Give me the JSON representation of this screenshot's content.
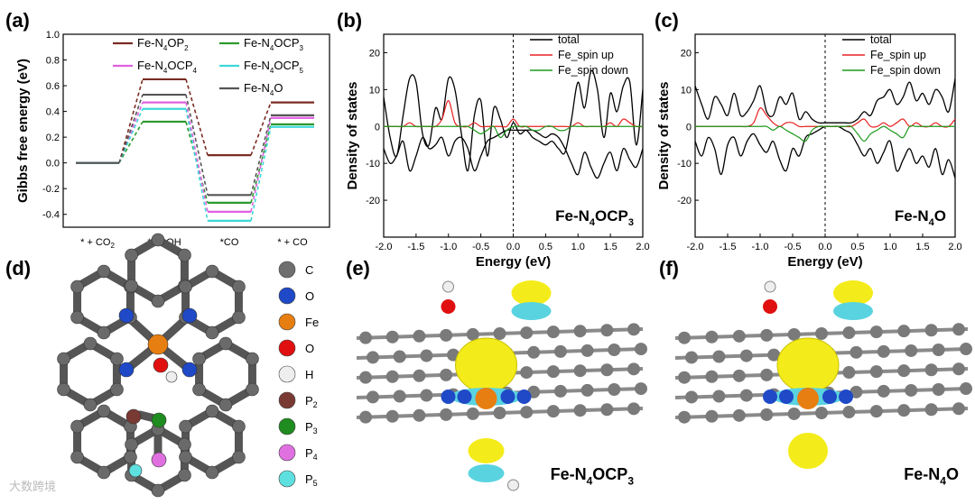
{
  "panels": {
    "a": "(a)",
    "b": "(b)",
    "c": "(c)",
    "d": "(d)",
    "e": "(e)",
    "f": "(f)"
  },
  "colors": {
    "P2": "#7a2b22",
    "P3": "#2e9a2e",
    "P4": "#e060e0",
    "P5": "#3fd8d8",
    "N4O": "#555555",
    "total": "#000000",
    "spin_up": "#e82020",
    "spin_down": "#1c9a1c"
  },
  "chart_data": [
    {
      "type": "line",
      "panel": "a",
      "ylabel": "Gibbs free energy (eV)",
      "ylim": [
        -0.5,
        1.0
      ],
      "yticks": [
        "-0.4",
        "-0.2",
        "0.0",
        "0.2",
        "0.4",
        "0.6",
        "0.8",
        "1.0"
      ],
      "categories": [
        "* + CO2",
        "*COOH",
        "*CO",
        "* + CO"
      ],
      "category_labels": [
        {
          "main": "* + CO",
          "sub": "2"
        },
        {
          "main": "*COOH",
          "sub": ""
        },
        {
          "main": "*CO",
          "sub": ""
        },
        {
          "main": "* + CO",
          "sub": ""
        }
      ],
      "series": [
        {
          "key": "P2",
          "name": {
            "main": "Fe-N",
            "s1": "4",
            "mid": "OP",
            "s2": "2"
          },
          "values": [
            0.0,
            0.65,
            0.06,
            0.47
          ]
        },
        {
          "key": "P3",
          "name": {
            "main": "Fe-N",
            "s1": "4",
            "mid": "OCP",
            "s2": "3"
          },
          "values": [
            0.0,
            0.32,
            -0.31,
            0.3
          ]
        },
        {
          "key": "P4",
          "name": {
            "main": "Fe-N",
            "s1": "4",
            "mid": "OCP",
            "s2": "4"
          },
          "values": [
            0.0,
            0.47,
            -0.38,
            0.35
          ]
        },
        {
          "key": "P5",
          "name": {
            "main": "Fe-N",
            "s1": "4",
            "mid": "OCP",
            "s2": "5"
          },
          "values": [
            0.0,
            0.42,
            -0.45,
            0.28
          ]
        },
        {
          "key": "N4O",
          "name": {
            "main": "Fe-N",
            "s1": "4",
            "mid": "O",
            "s2": ""
          },
          "values": [
            0.0,
            0.53,
            -0.25,
            0.37
          ]
        }
      ]
    },
    {
      "type": "line",
      "panel": "b",
      "title": {
        "main": "Fe-N",
        "s1": "4",
        "mid": "OCP",
        "s2": "3"
      },
      "xlabel": "Energy (eV)",
      "ylabel": "Density of states",
      "xlim": [
        -2.0,
        2.0
      ],
      "ylim": [
        -30,
        25
      ],
      "xticks": [
        "-2.0",
        "-1.5",
        "-1.0",
        "-0.5",
        "0.0",
        "0.5",
        "1.0",
        "1.5",
        "2.0"
      ],
      "yticks": [
        "-20",
        "-10",
        "0",
        "10",
        "20"
      ],
      "x": [
        -2.0,
        -1.9,
        -1.8,
        -1.7,
        -1.6,
        -1.5,
        -1.4,
        -1.3,
        -1.2,
        -1.1,
        -1.0,
        -0.9,
        -0.8,
        -0.7,
        -0.6,
        -0.5,
        -0.4,
        -0.3,
        -0.2,
        -0.1,
        0.0,
        0.1,
        0.2,
        0.3,
        0.4,
        0.5,
        0.6,
        0.7,
        0.8,
        0.9,
        1.0,
        1.1,
        1.2,
        1.3,
        1.4,
        1.5,
        1.6,
        1.7,
        1.8,
        1.9,
        2.0
      ],
      "series": [
        {
          "name": "total",
          "key": "total",
          "values": [
            8,
            -3,
            -8,
            3,
            13,
            12,
            -2,
            -5,
            5,
            2,
            13,
            10,
            -2,
            -12,
            3,
            7,
            -8,
            5,
            2,
            -3,
            1,
            -2,
            -1,
            -3,
            -4,
            -5,
            -4,
            -6,
            -7,
            2,
            12,
            5,
            15,
            10,
            -3,
            9,
            4,
            11,
            12,
            -5,
            10
          ]
        },
        {
          "name": "total_down",
          "key": "total",
          "values": [
            -6,
            -10,
            -8,
            -4,
            -12,
            -8,
            -3,
            -6,
            -5,
            -3,
            -8,
            -4,
            -3,
            -6,
            -12,
            -8,
            -4,
            -3,
            -2,
            -1,
            -1,
            -1,
            -1,
            -1,
            -2,
            -3,
            -2,
            -3,
            -6,
            -10,
            -13,
            -7,
            -11,
            -14,
            -10,
            -7,
            -12,
            -6,
            -9,
            -11,
            -6
          ]
        },
        {
          "name": "Fe_spin up",
          "key": "spin_up",
          "values": [
            0,
            0,
            0,
            0,
            1,
            0,
            0,
            0,
            0,
            2,
            7,
            1,
            0,
            0,
            1,
            0,
            0,
            0,
            0,
            0,
            2,
            0,
            0,
            0,
            0,
            0,
            0,
            0,
            0,
            0,
            1,
            0,
            0,
            0,
            0,
            1,
            0,
            2,
            1,
            0,
            0
          ]
        },
        {
          "name": "Fe_spin down",
          "key": "spin_down",
          "values": [
            0,
            0,
            0,
            0,
            0,
            0,
            0,
            0,
            0,
            0,
            0,
            0,
            0,
            0,
            -1,
            -2,
            -1,
            0,
            -3,
            -1,
            0,
            0,
            0,
            -1,
            -1,
            0,
            0,
            -1,
            -1,
            0,
            0,
            0,
            0,
            0,
            0,
            0,
            0,
            0,
            0,
            0,
            0
          ]
        }
      ],
      "legend": [
        "total",
        "Fe_spin up",
        "Fe_spin down"
      ]
    },
    {
      "type": "line",
      "panel": "c",
      "title": {
        "main": "Fe-N",
        "s1": "4",
        "mid": "O",
        "s2": ""
      },
      "xlabel": "Energy (eV)",
      "ylabel": "Density of states",
      "xlim": [
        -2.0,
        2.0
      ],
      "ylim": [
        -30,
        25
      ],
      "xticks": [
        "-2.0",
        "-1.5",
        "-1.0",
        "-0.5",
        "0.0",
        "0.5",
        "1.0",
        "1.5",
        "2.0"
      ],
      "yticks": [
        "-20",
        "-10",
        "0",
        "10",
        "20"
      ],
      "x": [
        -2.0,
        -1.9,
        -1.8,
        -1.7,
        -1.6,
        -1.5,
        -1.4,
        -1.3,
        -1.2,
        -1.1,
        -1.0,
        -0.9,
        -0.8,
        -0.7,
        -0.6,
        -0.5,
        -0.4,
        -0.3,
        -0.2,
        -0.1,
        0.0,
        0.1,
        0.2,
        0.3,
        0.4,
        0.5,
        0.6,
        0.7,
        0.8,
        0.9,
        1.0,
        1.1,
        1.2,
        1.3,
        1.4,
        1.5,
        1.6,
        1.7,
        1.8,
        1.9,
        2.0
      ],
      "series": [
        {
          "name": "total",
          "key": "total",
          "values": [
            11,
            6,
            2,
            8,
            6,
            3,
            9,
            3,
            4,
            7,
            11,
            4,
            3,
            8,
            6,
            9,
            2,
            4,
            2,
            1,
            1,
            1,
            1,
            1,
            1,
            2,
            4,
            3,
            7,
            8,
            10,
            6,
            8,
            12,
            7,
            9,
            6,
            10,
            8,
            4,
            13
          ]
        },
        {
          "name": "total_down",
          "key": "total",
          "values": [
            -4,
            -8,
            -3,
            -6,
            -13,
            -5,
            -3,
            -8,
            -4,
            -2,
            -5,
            -7,
            -4,
            -9,
            -12,
            -6,
            -8,
            -3,
            -2,
            -1,
            0,
            0,
            0,
            -1,
            -2,
            -5,
            -8,
            -6,
            -10,
            -7,
            -4,
            -12,
            -9,
            -6,
            -10,
            -8,
            -11,
            -6,
            -13,
            -9,
            -14
          ]
        },
        {
          "name": "Fe_spin up",
          "key": "spin_up",
          "values": [
            0,
            0,
            0,
            0,
            0,
            0,
            0,
            0,
            0,
            1,
            5,
            3,
            1,
            0,
            1,
            1,
            0,
            0,
            0,
            0,
            0,
            0,
            0,
            0,
            0,
            1,
            2,
            0,
            0,
            1,
            0,
            1,
            2,
            0,
            1,
            0,
            0,
            1,
            0,
            0,
            2
          ]
        },
        {
          "name": "Fe_spin down",
          "key": "spin_down",
          "values": [
            0,
            0,
            0,
            0,
            0,
            0,
            0,
            0,
            0,
            0,
            0,
            0,
            -1,
            0,
            -1,
            -2,
            -3,
            -4,
            -1,
            0,
            0,
            0,
            0,
            0,
            0,
            -2,
            -4,
            -2,
            -1,
            0,
            -1,
            -2,
            -3,
            0,
            0,
            0,
            0,
            0,
            0,
            0,
            0
          ]
        }
      ],
      "legend": [
        "total",
        "Fe_spin up",
        "Fe_spin down"
      ]
    }
  ],
  "structure_legend": [
    {
      "label": "C",
      "sub": "",
      "color": "#6f6f6f"
    },
    {
      "label": "O",
      "sub": "",
      "color": "#1f49c7"
    },
    {
      "label": "Fe",
      "sub": "",
      "color": "#e67e12"
    },
    {
      "label": "O",
      "sub": "",
      "color": "#e01010"
    },
    {
      "label": "H",
      "sub": "",
      "color": "#eeeeee"
    },
    {
      "label": "P",
      "sub": "2",
      "color": "#7a3a34"
    },
    {
      "label": "P",
      "sub": "3",
      "color": "#1e8c1e"
    },
    {
      "label": "P",
      "sub": "4",
      "color": "#e070e0"
    },
    {
      "label": "P",
      "sub": "5",
      "color": "#5fe0e0"
    }
  ],
  "image_labels": {
    "e": {
      "main": "Fe-N",
      "s1": "4",
      "mid": "OCP",
      "s2": "3"
    },
    "f": {
      "main": "Fe-N",
      "s1": "4",
      "mid": "O",
      "s2": ""
    }
  },
  "watermark": "大数跨境"
}
